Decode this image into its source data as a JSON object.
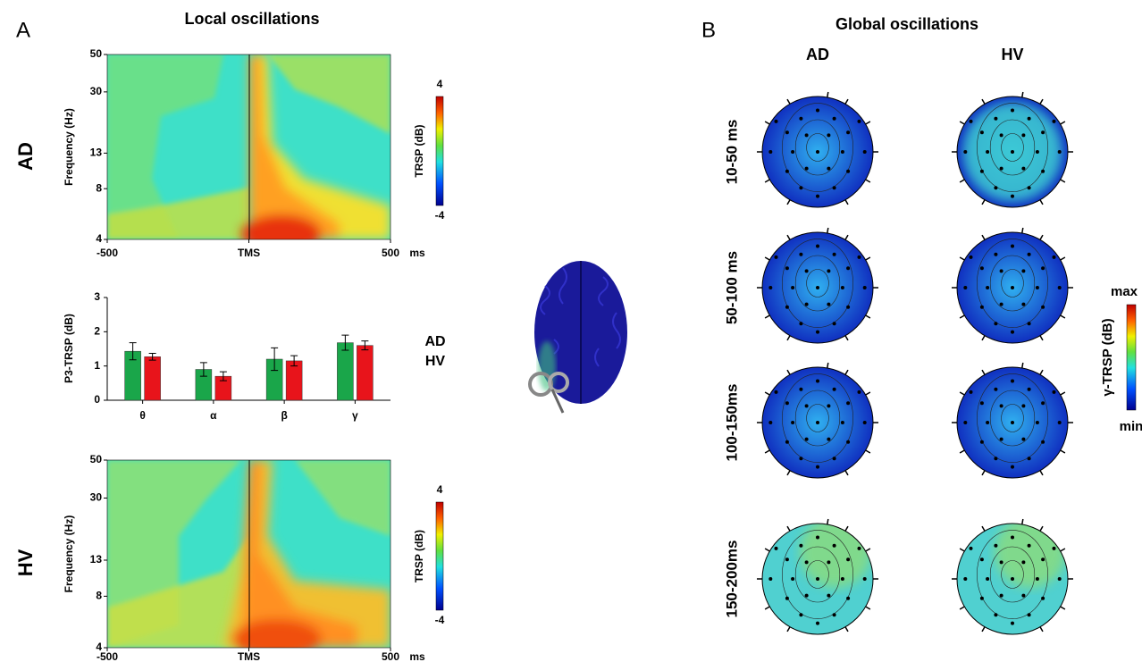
{
  "panel_a": {
    "label": "A",
    "title": "Local oscillations",
    "row_labels": [
      "AD",
      "HV"
    ],
    "spectrogram": {
      "ylabel": "Frequency (Hz)",
      "log_scale": true,
      "ylim": [
        4,
        50
      ],
      "yticks": [
        4,
        8,
        13,
        30,
        50
      ],
      "xlim": [
        -500,
        500
      ],
      "xticks": [
        -500,
        {
          "value": 0,
          "label": "TMS"
        },
        500
      ],
      "xunit": "ms",
      "colorbar_label": "TRSP (dB)",
      "colorbar_lim": [
        -4,
        4
      ]
    }
  },
  "chart_data": {
    "type": "bar",
    "ylabel": "P3-TRSP (dB)",
    "categories": [
      "θ",
      "α",
      "β",
      "γ"
    ],
    "series": [
      {
        "name": "AD",
        "color": "#e8141b",
        "values": [
          1.27,
          0.7,
          1.15,
          1.6
        ],
        "errors": [
          0.1,
          0.13,
          0.15,
          0.13
        ]
      },
      {
        "name": "HV",
        "color": "#1aa64a",
        "values": [
          1.43,
          0.9,
          1.2,
          1.68
        ],
        "errors": [
          0.25,
          0.2,
          0.33,
          0.22
        ]
      }
    ],
    "ylim": [
      0,
      3
    ],
    "yticks": [
      0,
      1,
      2,
      3
    ]
  },
  "panel_b": {
    "label": "B",
    "title": "Global oscillations",
    "columns": [
      "AD",
      "HV"
    ],
    "rows": [
      "10-50 ms",
      "50-100 ms",
      "100-150ms",
      "150-200ms"
    ],
    "colorbar_label": "γ-TRSP (dB)",
    "colorbar_max": "max",
    "colorbar_min": "min"
  }
}
